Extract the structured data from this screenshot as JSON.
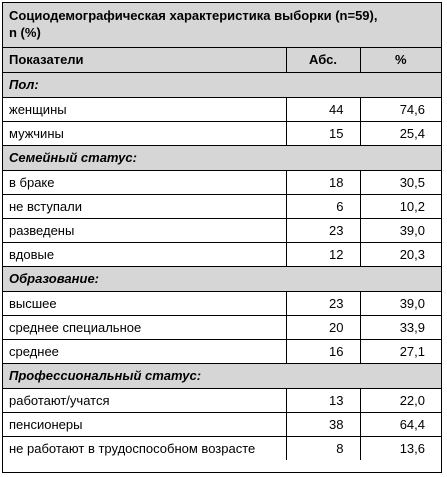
{
  "caption": {
    "line1": "Социодемографическая характеристика выборки (n=59),",
    "line2": "n (%)"
  },
  "columns": [
    "Показатели",
    "Абс.",
    "%"
  ],
  "sections": [
    {
      "title": "Пол:",
      "rows": [
        {
          "label": "женщины",
          "abs": "44",
          "pct": "74,6"
        },
        {
          "label": "мужчины",
          "abs": "15",
          "pct": "25,4"
        }
      ]
    },
    {
      "title": "Семейный статус:",
      "rows": [
        {
          "label": "в браке",
          "abs": "18",
          "pct": "30,5"
        },
        {
          "label": "не вступали",
          "abs": "6",
          "pct": "10,2"
        },
        {
          "label": "разведены",
          "abs": "23",
          "pct": "39,0"
        },
        {
          "label": "вдовые",
          "abs": "12",
          "pct": "20,3"
        }
      ]
    },
    {
      "title": "Образование:",
      "rows": [
        {
          "label": "высшее",
          "abs": "23",
          "pct": "39,0"
        },
        {
          "label": "среднее специальное",
          "abs": "20",
          "pct": "33,9"
        },
        {
          "label": "среднее",
          "abs": "16",
          "pct": "27,1"
        }
      ]
    },
    {
      "title": "Профессиональный статус:",
      "rows": [
        {
          "label": "работают/учатся",
          "abs": "13",
          "pct": "22,0"
        },
        {
          "label": "пенсионеры",
          "abs": "38",
          "pct": "64,4"
        },
        {
          "label": "не работают в трудоспособном возрасте",
          "abs": "8",
          "pct": "13,6"
        }
      ]
    }
  ]
}
